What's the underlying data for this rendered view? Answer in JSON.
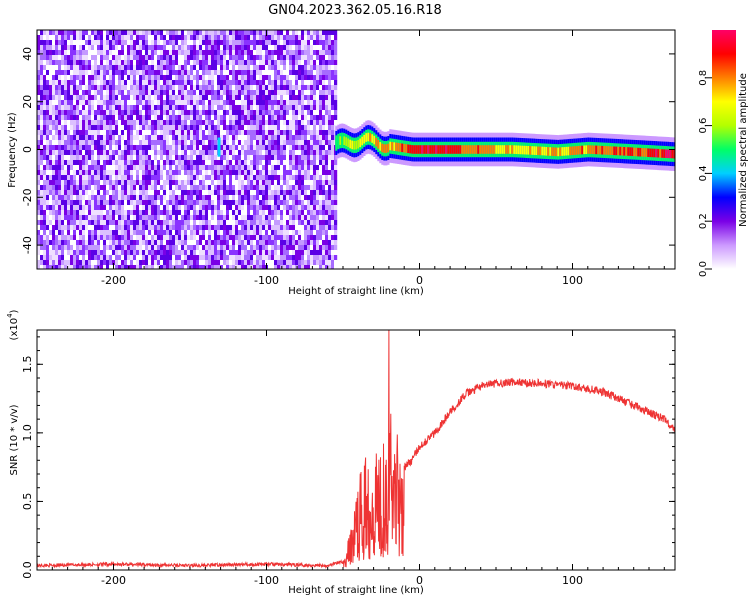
{
  "title": "GN04.2023.362.05.16.R18",
  "chart_data": [
    {
      "type": "heatmap",
      "xlabel": "Height of straight line (km)",
      "ylabel": "Frequency (Hz)",
      "xlim": [
        -250,
        167
      ],
      "ylim": [
        -50,
        50
      ],
      "xticks": [
        -200,
        -100,
        0,
        100
      ],
      "yticks": [
        -40,
        -20,
        0,
        20,
        40
      ],
      "colorbar": {
        "label": "Normalized spectral amplitude",
        "range": [
          0.0,
          1.0
        ],
        "ticks": [
          0.0,
          0.2,
          0.4,
          0.6,
          0.8
        ],
        "colors": [
          "#ffffff",
          "#cc99ff",
          "#7a00e6",
          "#0000ff",
          "#00cfff",
          "#00ff66",
          "#b3ff00",
          "#ffff00",
          "#ff8000",
          "#ff0000",
          "#ff0066"
        ]
      },
      "noise_region_x": [
        -250,
        -55
      ],
      "band": [
        {
          "x": -55,
          "freq": 2,
          "amp": 0.55
        },
        {
          "x": -45,
          "freq": 3,
          "amp": 0.65
        },
        {
          "x": -35,
          "freq": 4,
          "amp": 0.7
        },
        {
          "x": -25,
          "freq": 2,
          "amp": 0.8
        },
        {
          "x": -15,
          "freq": 1,
          "amp": 0.75
        },
        {
          "x": -5,
          "freq": 0,
          "amp": 0.9
        },
        {
          "x": 10,
          "freq": 0,
          "amp": 0.95
        },
        {
          "x": 30,
          "freq": 0,
          "amp": 0.85
        },
        {
          "x": 60,
          "freq": 0,
          "amp": 0.7
        },
        {
          "x": 90,
          "freq": -1,
          "amp": 0.75
        },
        {
          "x": 110,
          "freq": 0,
          "amp": 0.8
        },
        {
          "x": 140,
          "freq": -1,
          "amp": 0.85
        },
        {
          "x": 167,
          "freq": -2,
          "amp": 0.95
        }
      ]
    },
    {
      "type": "line",
      "xlabel": "Height of straight line (km)",
      "ylabel": "SNR (10 * v/v)",
      "scale_label": "(x10",
      "scale_exp": "4",
      "scale_close": ")",
      "xlim": [
        -250,
        167
      ],
      "ylim": [
        0,
        1.75
      ],
      "xticks": [
        -200,
        -100,
        0,
        100
      ],
      "yticks": [
        0.0,
        0.5,
        1.0,
        1.5
      ],
      "ytick_labels": [
        "0.0",
        "0.5",
        "1.0",
        "1.5"
      ],
      "color": "#ee3333",
      "x": [
        -250,
        -200,
        -150,
        -100,
        -60,
        -50,
        -45,
        -40,
        -35,
        -30,
        -25,
        -20,
        -15,
        -10,
        -5,
        0,
        10,
        20,
        30,
        40,
        50,
        60,
        80,
        100,
        120,
        140,
        160,
        167
      ],
      "y": [
        0.02,
        0.03,
        0.02,
        0.03,
        0.02,
        0.05,
        0.25,
        0.55,
        0.7,
        0.75,
        0.8,
        1.0,
        0.9,
        0.75,
        0.8,
        0.9,
        1.0,
        1.15,
        1.28,
        1.34,
        1.36,
        1.37,
        1.36,
        1.34,
        1.3,
        1.2,
        1.1,
        1.02
      ]
    }
  ]
}
